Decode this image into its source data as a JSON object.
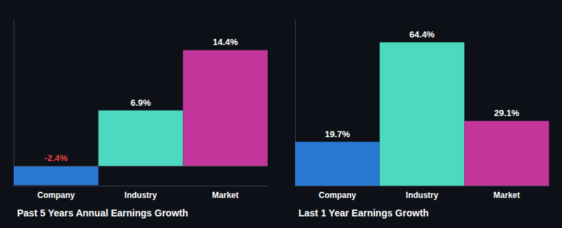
{
  "chart_data": [
    {
      "type": "bar",
      "title": "Past 5 Years Annual Earnings Growth",
      "categories": [
        "Company",
        "Industry",
        "Market"
      ],
      "values": [
        -2.4,
        6.9,
        14.4
      ],
      "value_labels": [
        "-2.4%",
        "6.9%",
        "14.4%"
      ],
      "colors": [
        "#2979d4",
        "#4dd9c0",
        "#c2369b"
      ],
      "ylim": [
        -2.466,
        18.096
      ],
      "data_labels": true,
      "tick_labels": "x",
      "grid": false
    },
    {
      "type": "bar",
      "title": "Last 1 Year Earnings Growth",
      "categories": [
        "Company",
        "Industry",
        "Market"
      ],
      "values": [
        19.7,
        64.4,
        29.1
      ],
      "value_labels": [
        "19.7%",
        "64.4%",
        "29.1%"
      ],
      "colors": [
        "#2979d4",
        "#4dd9c0",
        "#c2369b"
      ],
      "ylim": [
        0,
        74.234
      ],
      "data_labels": true,
      "tick_labels": "x",
      "grid": false
    }
  ]
}
